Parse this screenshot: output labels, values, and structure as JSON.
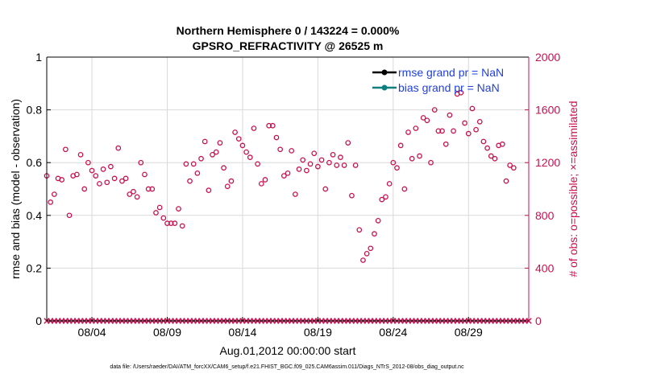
{
  "chart_data": {
    "type": "scatter",
    "title": "Northern Hemisphere 0 / 143224 = 0.000%",
    "subtitle": "GPSRO_REFRACTIVITY @ 26525 m",
    "xlabel": "Aug.01,2012 00:00:00 start",
    "ylabel_left": "rmse and bias (model - observation)",
    "ylabel_right": "# of obs: o=possible; ×=assimilated",
    "xlim": [
      1,
      33
    ],
    "ylim_left": [
      0,
      1
    ],
    "ylim_right": [
      0,
      2000
    ],
    "x_ticks": [
      4,
      9,
      14,
      19,
      24,
      29
    ],
    "x_tick_labels": [
      "08/04",
      "08/09",
      "08/14",
      "08/19",
      "08/24",
      "08/29"
    ],
    "y_left_ticks": [
      0,
      0.2,
      0.4,
      0.6,
      0.8,
      1
    ],
    "y_left_tick_labels": [
      "0",
      "0.2",
      "0.4",
      "0.6",
      "0.8",
      "1"
    ],
    "y_right_ticks": [
      0,
      400,
      800,
      1200,
      1600,
      2000
    ],
    "y_right_tick_labels": [
      "0",
      "400",
      "800",
      "1200",
      "1600",
      "2000"
    ],
    "legend": [
      {
        "label": "rmse grand pr = NaN",
        "color": "#000000"
      },
      {
        "label": "bias grand pr = NaN",
        "color": "#0e7f7f"
      }
    ],
    "legend_position": "top-right",
    "colors": {
      "right_axis": "#c8104e",
      "possible": "#c8104e",
      "assimilated": "#c8104e"
    },
    "series": [
      {
        "name": "possible",
        "marker": "o",
        "x_start": 1.0,
        "x_step": 0.25,
        "values": [
          1100,
          900,
          960,
          1080,
          1070,
          1300,
          800,
          1100,
          1110,
          1260,
          1000,
          1200,
          1140,
          1100,
          1040,
          1150,
          1050,
          1170,
          1080,
          1310,
          1060,
          1080,
          960,
          980,
          940,
          1200,
          1110,
          1000,
          1000,
          820,
          860,
          780,
          740,
          740,
          740,
          850,
          720,
          1190,
          1060,
          1190,
          1120,
          1230,
          1360,
          990,
          1260,
          1280,
          1350,
          1160,
          1020,
          1060,
          1430,
          1380,
          1330,
          1280,
          1240,
          1460,
          1190,
          1040,
          1070,
          1480,
          1480,
          1390,
          1300,
          1100,
          1120,
          1290,
          960,
          1150,
          1220,
          1140,
          1190,
          1270,
          1170,
          1220,
          1000,
          1200,
          1260,
          1180,
          1240,
          1180,
          1350,
          950,
          1180,
          690,
          460,
          510,
          550,
          660,
          760,
          920,
          940,
          1040,
          1200,
          1160,
          1330,
          1000,
          1430,
          1230,
          1460,
          1250,
          1540,
          1520,
          1200,
          1600,
          1440,
          1440,
          1340,
          1560,
          1440,
          1720,
          1730,
          1500,
          1420,
          1610,
          1450,
          1510,
          1360,
          1310,
          1250,
          1230,
          1330,
          1340,
          1060,
          1180,
          1160
        ]
      },
      {
        "name": "assimilated",
        "marker": "x",
        "x_start": 1.0,
        "x_step": 0.25,
        "values": [
          0,
          0,
          0,
          0,
          0,
          0,
          0,
          0,
          0,
          0,
          0,
          0,
          0,
          0,
          0,
          0,
          0,
          0,
          0,
          0,
          0,
          0,
          0,
          0,
          0,
          0,
          0,
          0,
          0,
          0,
          0,
          0,
          0,
          0,
          0,
          0,
          0,
          0,
          0,
          0,
          0,
          0,
          0,
          0,
          0,
          0,
          0,
          0,
          0,
          0,
          0,
          0,
          0,
          0,
          0,
          0,
          0,
          0,
          0,
          0,
          0,
          0,
          0,
          0,
          0,
          0,
          0,
          0,
          0,
          0,
          0,
          0,
          0,
          0,
          0,
          0,
          0,
          0,
          0,
          0,
          0,
          0,
          0,
          0,
          0,
          0,
          0,
          0,
          0,
          0,
          0,
          0,
          0,
          0,
          0,
          0,
          0,
          0,
          0,
          0,
          0,
          0,
          0,
          0,
          0,
          0,
          0,
          0,
          0,
          0,
          0,
          0,
          0,
          0,
          0,
          0,
          0,
          0,
          0,
          0,
          0,
          0,
          0,
          0,
          0,
          0,
          0,
          0,
          0
        ]
      }
    ]
  },
  "footer": "data file: /Users/raeder/DAI/ATM_forcXX/CAM6_setup/f.e21.FHIST_BGC.f09_025.CAM6assim.011/Diags_NTrS_2012-08/obs_diag_output.nc"
}
